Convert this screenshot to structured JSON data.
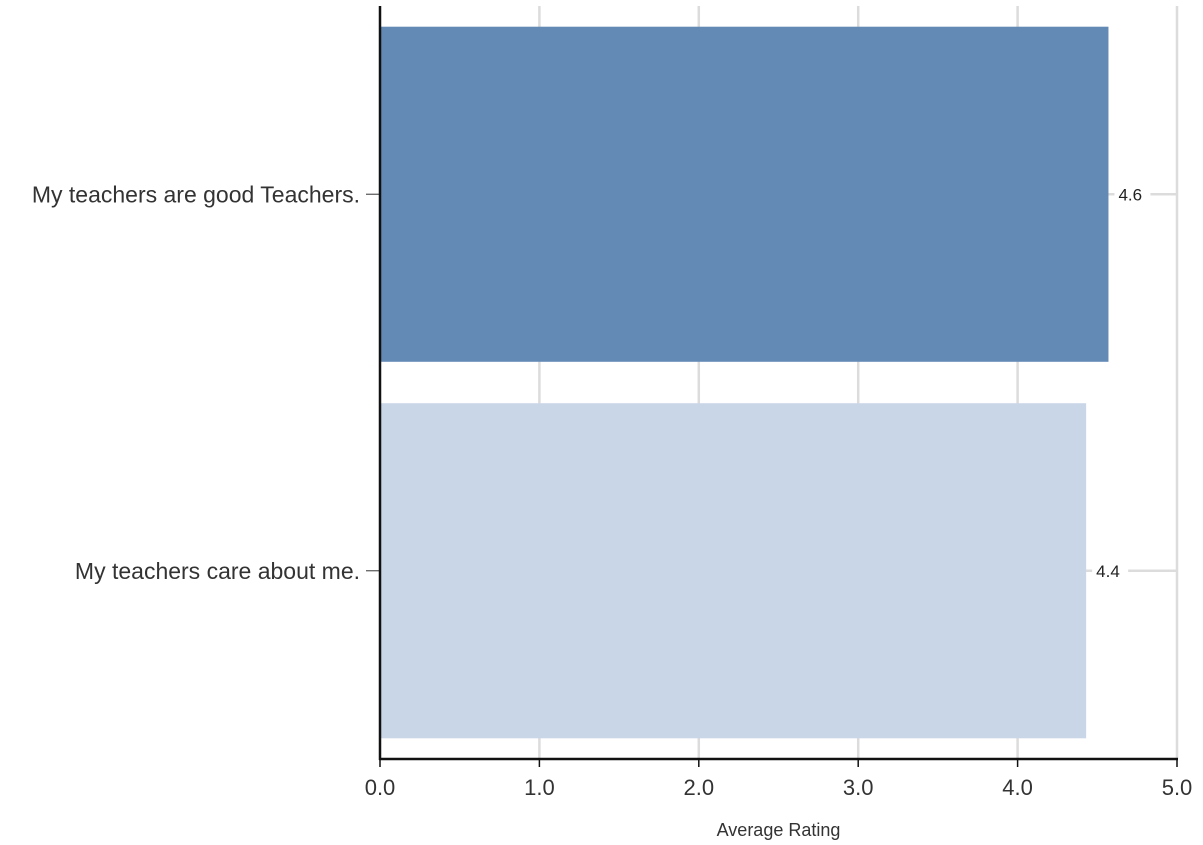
{
  "chart_data": {
    "type": "bar",
    "orientation": "horizontal",
    "categories": [
      "My teachers are good Teachers.",
      "My teachers care about me."
    ],
    "values": [
      4.57,
      4.43
    ],
    "data_labels": [
      "4.6",
      "4.4"
    ],
    "xlabel": "Average Rating",
    "xlim": [
      0,
      5
    ],
    "x_ticks": [
      0,
      1,
      2,
      3,
      4,
      5
    ],
    "x_tick_labels": [
      "0.0",
      "1.0",
      "2.0",
      "3.0",
      "4.0",
      "5.0"
    ],
    "grid": true,
    "colors": [
      "#6389b5",
      "#c9d6e7"
    ]
  }
}
